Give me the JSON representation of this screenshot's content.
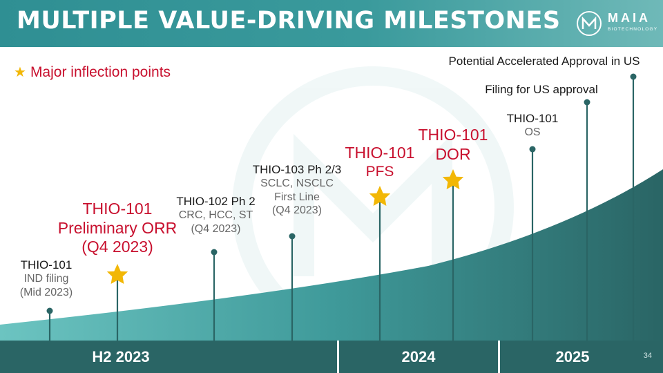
{
  "header": {
    "title": "MULTIPLE VALUE-DRIVING MILESTONES",
    "logo_name": "MAIA",
    "logo_sub": "BIOTECHNOLOGY"
  },
  "legend": {
    "icon": "star-icon",
    "label": "Major inflection points"
  },
  "milestones": [
    {
      "title": "THIO-101",
      "lines": [
        "IND filing",
        "(Mid 2023)"
      ]
    },
    {
      "title": "THIO-101",
      "lines": [
        "Preliminary ORR",
        "(Q4 2023)"
      ],
      "major": true
    },
    {
      "title": "THIO-102 Ph 2",
      "lines": [
        "CRC, HCC, ST",
        "(Q4 2023)"
      ]
    },
    {
      "title": "THIO-103 Ph 2/3",
      "lines": [
        "SCLC, NSCLC",
        "First Line",
        "(Q4 2023)"
      ]
    },
    {
      "title": "THIO-101",
      "lines": [
        "PFS"
      ],
      "major": true
    },
    {
      "title": "THIO-101",
      "lines": [
        "DOR"
      ],
      "major": true
    },
    {
      "title": "THIO-101",
      "lines": [
        "OS"
      ]
    },
    {
      "title": "Filing for US  approval"
    },
    {
      "title": "Potential Accelerated Approval in US"
    }
  ],
  "timeline": [
    "H2 2023",
    "2024",
    "2025"
  ],
  "page_number": "34",
  "colors": {
    "accent_red": "#c8102e",
    "star_gold": "#f2b705",
    "teal_dark": "#2a6565",
    "teal": "#3a9a9c"
  }
}
